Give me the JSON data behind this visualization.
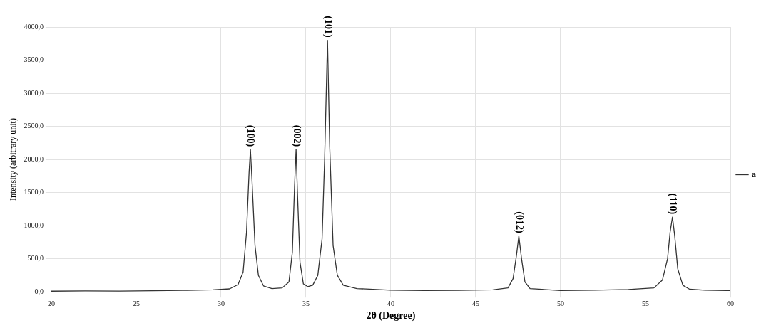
{
  "chart_data": {
    "type": "line",
    "xlabel": "2θ (Degree)",
    "ylabel": "Intensity (arbitrary unit)",
    "xlim": [
      20,
      60
    ],
    "xticks": [
      20,
      25,
      30,
      35,
      40,
      45,
      50,
      55,
      60
    ],
    "ylim": [
      0,
      4000
    ],
    "yticks": [
      {
        "value": 0,
        "label": "0,0"
      },
      {
        "value": 500,
        "label": "500,0"
      },
      {
        "value": 1000,
        "label": "1000,0"
      },
      {
        "value": 1500,
        "label": "1500,0"
      },
      {
        "value": 2000,
        "label": "2000,0"
      },
      {
        "value": 2500,
        "label": "2500,0"
      },
      {
        "value": 3000,
        "label": "3000,0"
      },
      {
        "value": 3500,
        "label": "3500,0"
      },
      {
        "value": 4000,
        "label": "4000,0"
      }
    ],
    "grid": true,
    "legend": "right",
    "marker": "none",
    "line_style": "solid",
    "series": [
      {
        "name": "a",
        "color": "#333333",
        "x": [
          20,
          22,
          24,
          26,
          28,
          29.5,
          30.5,
          31.0,
          31.3,
          31.5,
          31.65,
          31.73,
          31.82,
          32.0,
          32.2,
          32.5,
          33,
          33.6,
          34.0,
          34.2,
          34.33,
          34.42,
          34.5,
          34.65,
          34.85,
          35.1,
          35.4,
          35.7,
          35.95,
          36.1,
          36.27,
          36.4,
          36.6,
          36.85,
          37.2,
          38,
          40,
          42,
          44,
          46,
          46.9,
          47.2,
          47.4,
          47.54,
          47.7,
          47.9,
          48.2,
          50,
          52,
          54,
          55.5,
          56.0,
          56.3,
          56.45,
          56.59,
          56.72,
          56.9,
          57.2,
          57.6,
          58.5,
          60
        ],
        "values": [
          10,
          15,
          12,
          18,
          22,
          30,
          45,
          110,
          300,
          900,
          1800,
          2150,
          1700,
          700,
          250,
          90,
          50,
          60,
          150,
          600,
          1600,
          2150,
          1500,
          450,
          120,
          80,
          100,
          250,
          800,
          2000,
          3800,
          2200,
          700,
          250,
          100,
          50,
          25,
          20,
          22,
          30,
          60,
          200,
          550,
          845,
          500,
          150,
          50,
          20,
          25,
          35,
          60,
          180,
          500,
          900,
          1130,
          850,
          350,
          100,
          40,
          25,
          20
        ]
      }
    ],
    "annotations": [
      {
        "text": "(100)",
        "x": 31.73,
        "y": 2150
      },
      {
        "text": "(002)",
        "x": 34.42,
        "y": 2150
      },
      {
        "text": "(101)",
        "x": 36.27,
        "y": 3800
      },
      {
        "text": "(012)",
        "x": 47.54,
        "y": 845
      },
      {
        "text": "(110)",
        "x": 56.59,
        "y": 1130
      }
    ]
  }
}
